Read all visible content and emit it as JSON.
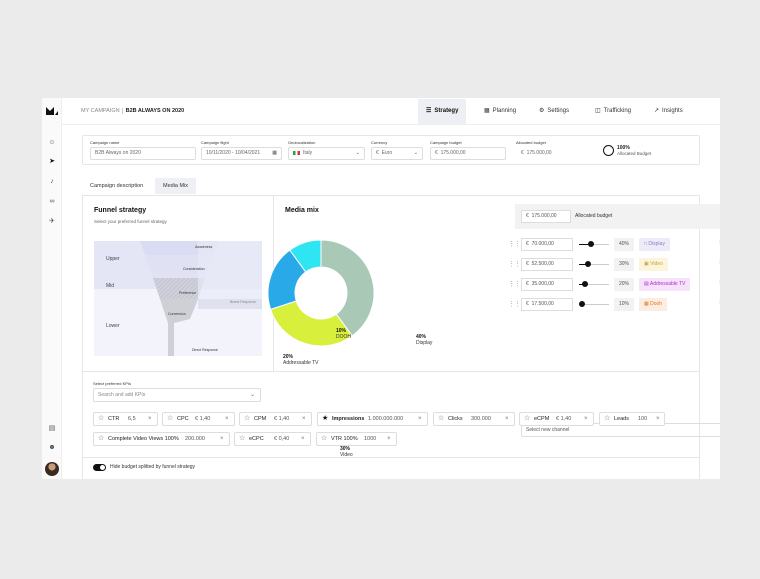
{
  "header": {
    "crumb": "MY CAMPAIGN",
    "campaign_name": "B2B ALWAYS ON 2020",
    "tabs": [
      {
        "label": "Strategy",
        "icon": "layers-icon",
        "active": true
      },
      {
        "label": "Planning",
        "icon": "table-icon",
        "active": false
      },
      {
        "label": "Settings",
        "icon": "gear-icon",
        "active": false
      },
      {
        "label": "Trafficking",
        "icon": "database-icon",
        "active": false
      },
      {
        "label": "Insights",
        "icon": "trend-icon",
        "active": false
      }
    ]
  },
  "sidebar": {
    "icons": [
      "users-icon",
      "rocket-icon",
      "bell-icon",
      "link-icon",
      "plane-icon",
      "document-icon",
      "team-icon"
    ]
  },
  "form": {
    "campaign_name": {
      "label": "Campaign name",
      "value": "B2B Always on 2020"
    },
    "campaign_flight": {
      "label": "Campaign flight",
      "value": "10/11/2020 - 10/04/2021"
    },
    "geolocalization": {
      "label": "Geolocalization",
      "value": "Italy"
    },
    "currency": {
      "label": "Currency",
      "value": "Euro",
      "symbol": "€"
    },
    "campaign_budget": {
      "label": "Campaign budget",
      "value": "175.000,00",
      "symbol": "€"
    },
    "allocated_budget": {
      "label": "Allocated budget",
      "value": "175.000,00",
      "symbol": "€"
    },
    "allocated_pct": "100%",
    "allocated_pct_label": "Allocated Budget"
  },
  "subtabs": [
    {
      "label": "Campaign description",
      "active": false
    },
    {
      "label": "Media Mix",
      "active": true
    }
  ],
  "funnel": {
    "title": "Funnel strategy",
    "subtitle": "Select your preferred funnel strategy",
    "levels": [
      "Upper",
      "Mid",
      "Lower"
    ],
    "stages": [
      "Awareness",
      "Consideration",
      "Preference",
      "Conversion"
    ],
    "outcomes": [
      "Brand Response",
      "Direct Response"
    ]
  },
  "media_mix": {
    "title": "Media mix",
    "colors": {
      "display": "#a9c8b6",
      "video": "#d8f03c",
      "addressable_tv": "#2aa9e8",
      "dooh": "#2ee6f2"
    }
  },
  "chart_data": {
    "type": "pie",
    "title": "Media mix",
    "slices": [
      {
        "label": "Display",
        "value": 40,
        "display": "40%"
      },
      {
        "label": "Video",
        "value": 30,
        "display": "30%"
      },
      {
        "label": "Addressable TV",
        "value": 20,
        "display": "20%"
      },
      {
        "label": "DOOH",
        "value": 10,
        "display": "10%"
      }
    ]
  },
  "budget": {
    "total_symbol": "€",
    "total": "175.000,00",
    "total_label": "Allocated budget",
    "channels": [
      {
        "amount": "70.000,00",
        "pct": "40%",
        "value": 40,
        "name": "Display",
        "icon": "monitor-icon",
        "color": "#8a7cc9",
        "bg": "#eeebf8"
      },
      {
        "amount": "52.500,00",
        "pct": "30%",
        "value": 30,
        "name": "Video",
        "icon": "video-icon",
        "color": "#c9a13a",
        "bg": "#fdf4dc"
      },
      {
        "amount": "35.000,00",
        "pct": "20%",
        "value": 20,
        "name": "Addressable TV",
        "icon": "tv-icon",
        "color": "#b02ad1",
        "bg": "#f6e3fa"
      },
      {
        "amount": "17.500,00",
        "pct": "10%",
        "value": 10,
        "name": "Dooh",
        "icon": "billboard-icon",
        "color": "#e0782a",
        "bg": "#fdece0"
      }
    ],
    "select_placeholder": "Select new channel"
  },
  "kpis": {
    "label": "Select preferred KPIs",
    "placeholder": "Search and add KPIs",
    "items": [
      {
        "name": "CTR",
        "value": "6,5",
        "starred": false
      },
      {
        "name": "CPC",
        "value": "€ 1,40",
        "starred": false
      },
      {
        "name": "CPM",
        "value": "€ 1,40",
        "starred": false
      },
      {
        "name": "Impressions",
        "value": "1.000.000.000",
        "starred": true
      },
      {
        "name": "Clicks",
        "value": "300.000",
        "starred": false
      },
      {
        "name": "eCPM",
        "value": "€ 1,40",
        "starred": false
      },
      {
        "name": "Leads",
        "value": "100",
        "starred": false
      },
      {
        "name": "Complete Video Views 100%",
        "value": "200.000",
        "starred": false
      },
      {
        "name": "eCPC",
        "value": "€ 0,40",
        "starred": false
      },
      {
        "name": "VTR 100%",
        "value": "1000",
        "starred": false
      }
    ]
  },
  "footer": {
    "toggle_label": "Hide budget splitted by funnel strategy",
    "toggle_on": true
  }
}
